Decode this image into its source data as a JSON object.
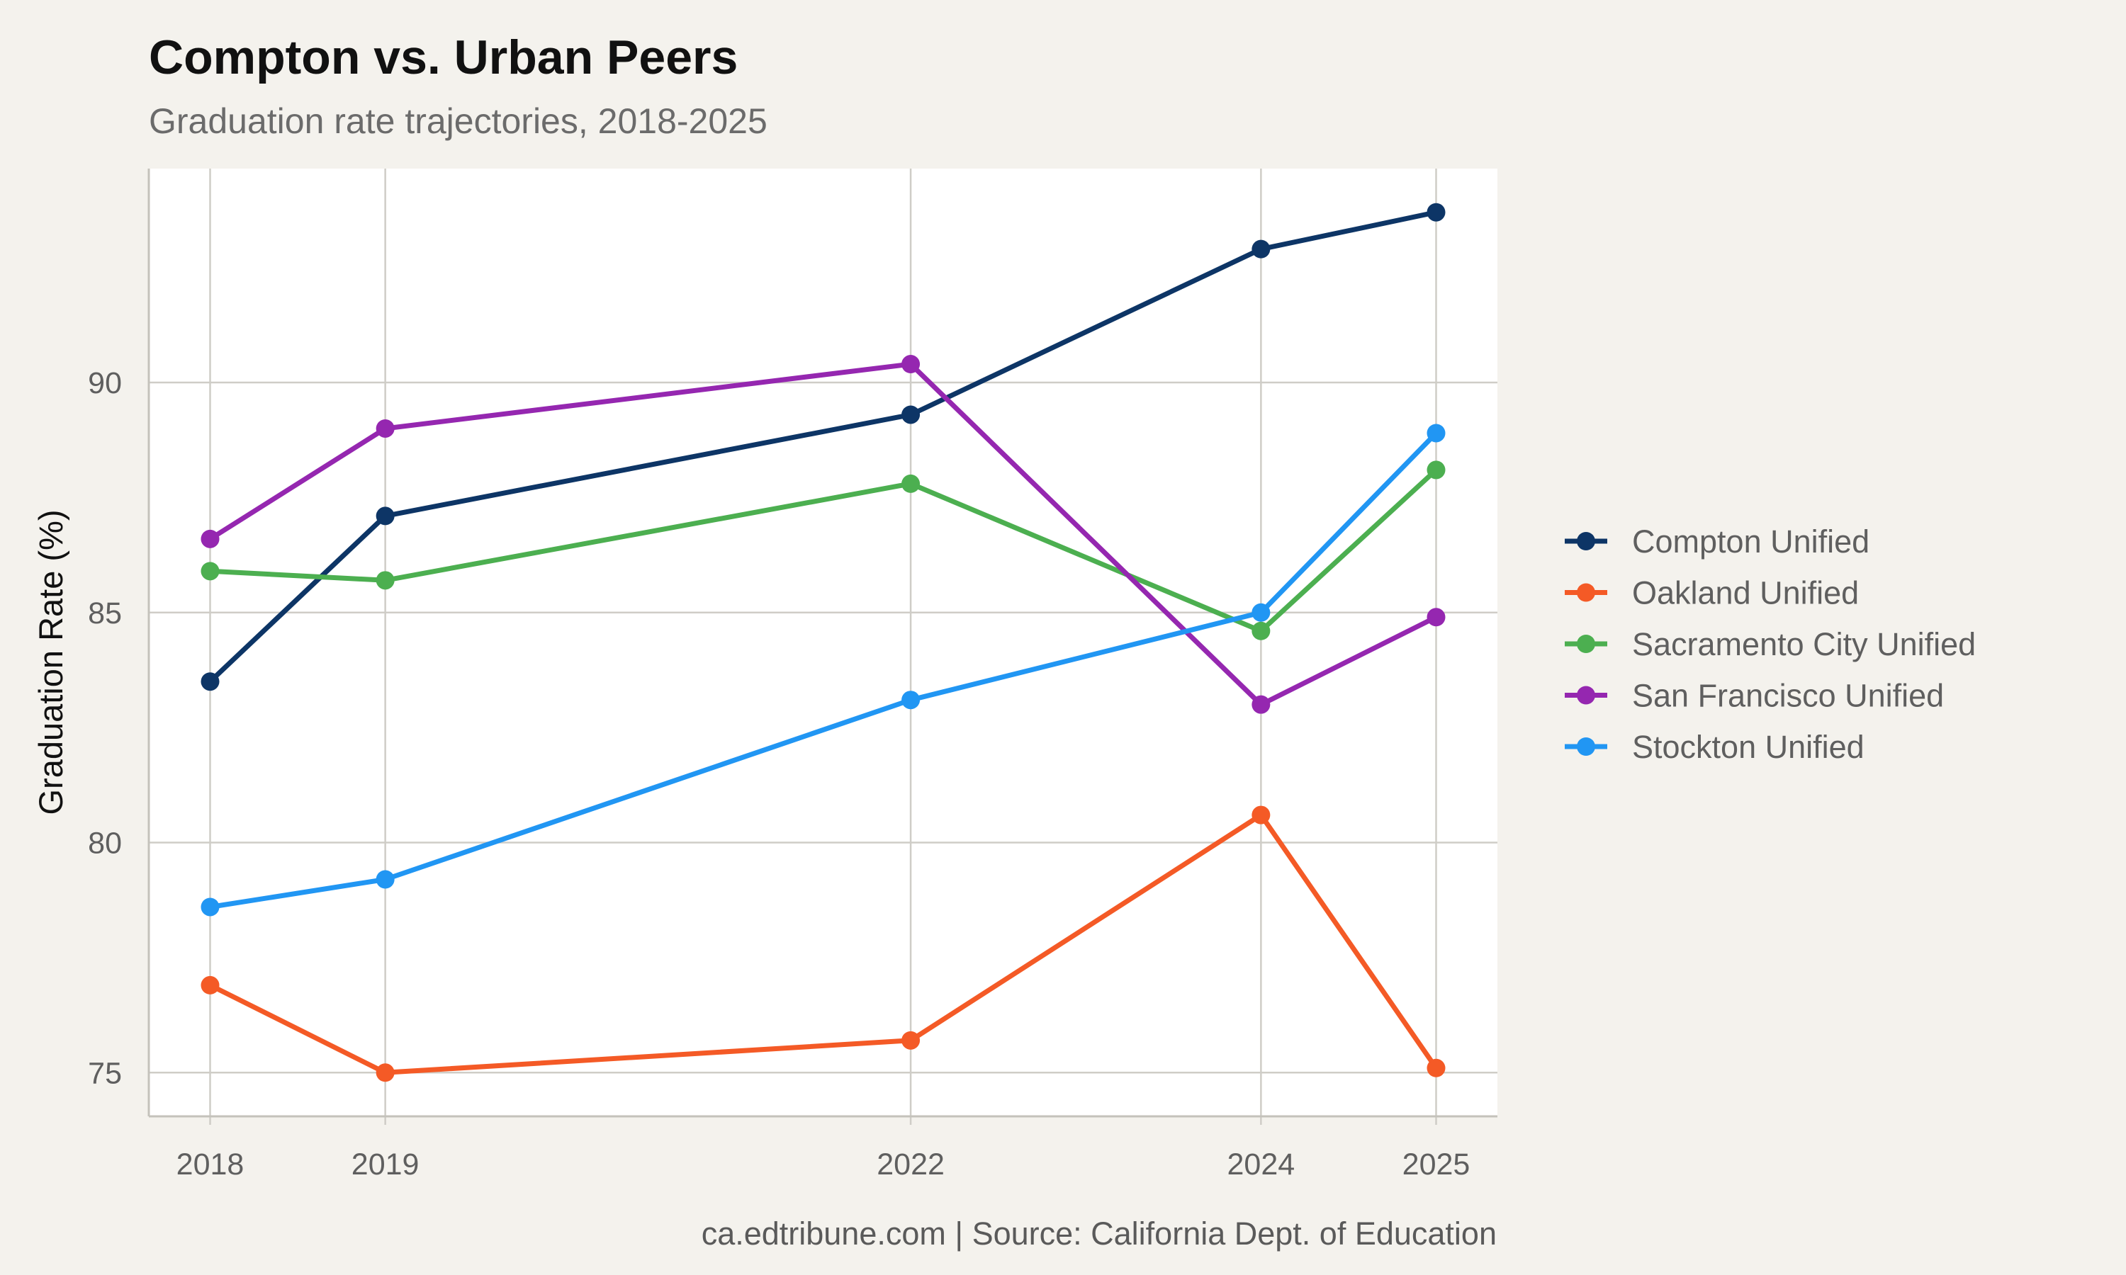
{
  "chart_data": {
    "type": "line",
    "title": "Compton vs. Urban Peers",
    "subtitle": "Graduation rate trajectories, 2018-2025",
    "caption": "ca.edtribune.com | Source: California Dept. of Education",
    "xlabel": "",
    "ylabel": "Graduation Rate (%)",
    "x": [
      2018,
      2019,
      2022,
      2024,
      2025
    ],
    "x_tick_labels": [
      "2018",
      "2019",
      "2022",
      "2024",
      "2025"
    ],
    "y_ticks": [
      75,
      80,
      85,
      90
    ],
    "y_tick_labels": [
      "75",
      "80",
      "85",
      "90"
    ],
    "xlim": [
      2017.65,
      2025.35
    ],
    "ylim": [
      74.05,
      94.65
    ],
    "grid": true,
    "legend_position": "right",
    "series": [
      {
        "name": "Compton Unified",
        "color": "#0d3566",
        "values": [
          83.5,
          87.1,
          89.3,
          92.9,
          93.7
        ]
      },
      {
        "name": "Oakland Unified",
        "color": "#f45a26",
        "values": [
          76.9,
          75.0,
          75.7,
          80.6,
          75.1
        ]
      },
      {
        "name": "Sacramento City Unified",
        "color": "#4caf50",
        "values": [
          85.9,
          85.7,
          87.8,
          84.6,
          88.1
        ]
      },
      {
        "name": "San Francisco Unified",
        "color": "#9527b0",
        "values": [
          86.6,
          89.0,
          90.4,
          83.0,
          84.9
        ]
      },
      {
        "name": "Stockton Unified",
        "color": "#2196f3",
        "values": [
          78.6,
          79.2,
          83.1,
          85.0,
          88.9
        ]
      }
    ],
    "panel_background": "#ffffff",
    "page_background": "#f4f2ed",
    "grid_color": "#cfcdc7"
  }
}
